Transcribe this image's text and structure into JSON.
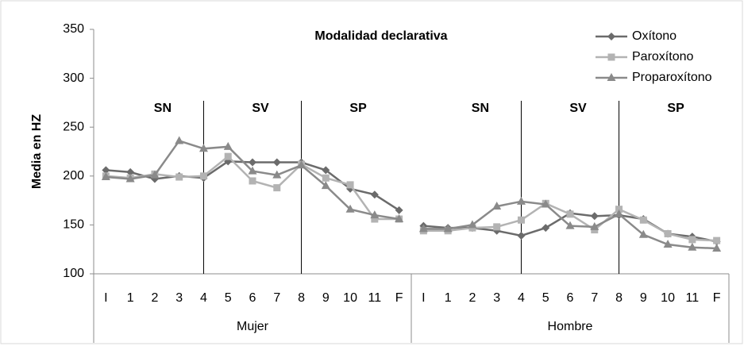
{
  "chart_data": {
    "type": "line",
    "title": "Modalidad declarativa",
    "y_label": "Media en HZ",
    "ylim": [
      100,
      350
    ],
    "yticks": [
      100,
      150,
      200,
      250,
      300,
      350
    ],
    "legend": "top-right",
    "groups": [
      {
        "name": "Mujer",
        "categories": [
          "I",
          "1",
          "2",
          "3",
          "4",
          "5",
          "6",
          "7",
          "8",
          "9",
          "10",
          "11",
          "F"
        ]
      },
      {
        "name": "Hombre",
        "categories": [
          "I",
          "1",
          "2",
          "3",
          "4",
          "5",
          "6",
          "7",
          "8",
          "9",
          "10",
          "11",
          "F"
        ]
      }
    ],
    "sections": [
      {
        "label": "SN",
        "end": "4"
      },
      {
        "label": "SV",
        "end": "8"
      },
      {
        "label": "SP"
      }
    ],
    "series": [
      {
        "name": "Oxítono",
        "color": "#6b6b6b",
        "marker": "diamond",
        "values": [
          [
            206,
            204,
            197,
            200,
            198,
            215,
            214,
            214,
            214,
            206,
            187,
            181,
            165
          ],
          [
            149,
            147,
            147,
            144,
            139,
            147,
            162,
            159,
            160,
            156,
            141,
            138,
            133
          ]
        ]
      },
      {
        "name": "Paroxítono",
        "color": "#b3b3b3",
        "marker": "square",
        "values": [
          [
            200,
            198,
            202,
            199,
            200,
            220,
            195,
            188,
            212,
            198,
            191,
            156,
            156
          ],
          [
            144,
            144,
            147,
            148,
            155,
            172,
            161,
            145,
            166,
            155,
            141,
            135,
            134
          ]
        ]
      },
      {
        "name": "Proparoxítono",
        "color": "#8a8a8a",
        "marker": "triangle",
        "values": [
          [
            199,
            197,
            201,
            236,
            228,
            230,
            205,
            201,
            211,
            190,
            166,
            160,
            156
          ],
          [
            146,
            146,
            150,
            169,
            174,
            171,
            149,
            148,
            161,
            140,
            130,
            127,
            126
          ]
        ]
      }
    ]
  }
}
